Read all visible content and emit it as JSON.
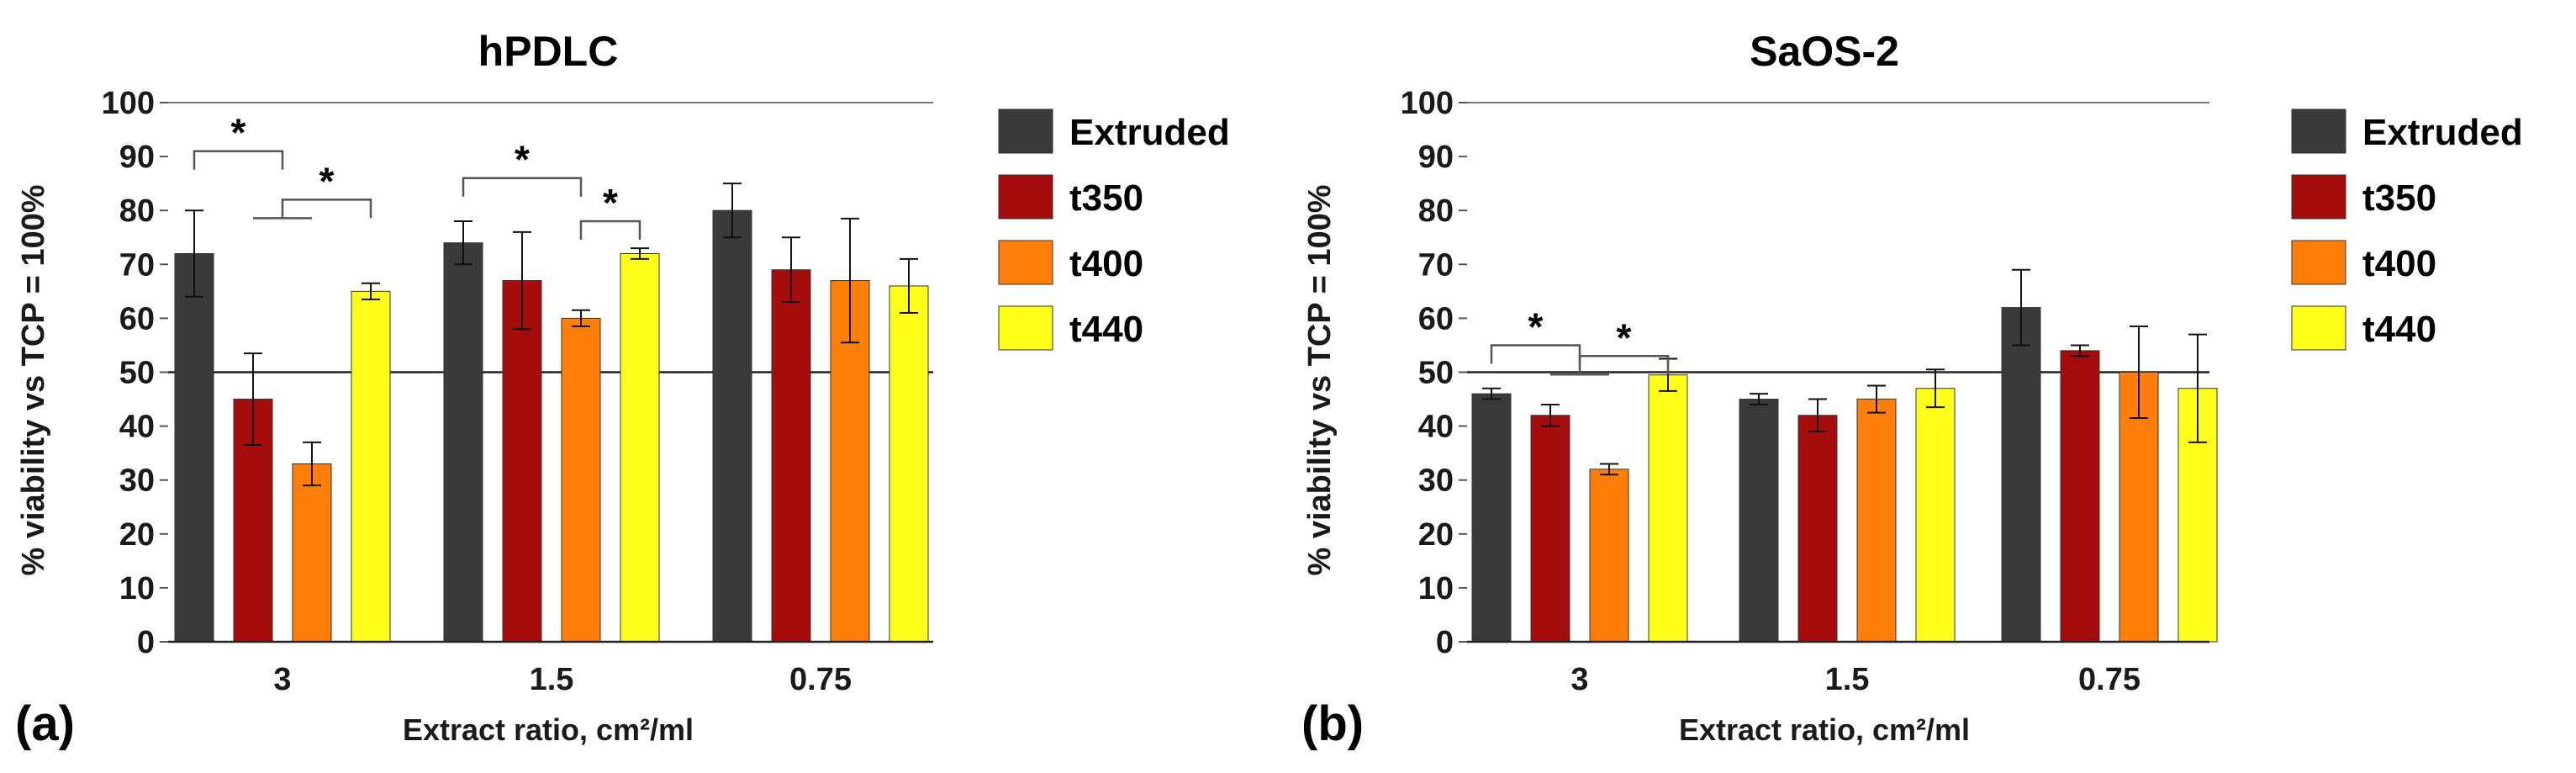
{
  "colors": {
    "Extruded": "#3a3a3a",
    "t350": "#a50d0d",
    "t400": "#ff7f0a",
    "t440": "#ffff1a"
  },
  "chart_data": [
    {
      "type": "bar",
      "panel_label": "(a)",
      "title": "hPDLC",
      "xlabel": "Extract ratio, cm²/ml",
      "ylabel": "% viability vs TCP = 100%",
      "ylim": [
        0,
        100
      ],
      "yticks": [
        "0",
        "10",
        "20",
        "30",
        "40",
        "50",
        "60",
        "70",
        "80",
        "90",
        "100"
      ],
      "reference_line": 50,
      "categories": [
        "3",
        "1.5",
        "0.75"
      ],
      "legend_position": "right",
      "series": [
        {
          "name": "Extruded",
          "values": [
            72,
            74,
            80
          ],
          "errors": [
            8,
            4,
            5
          ]
        },
        {
          "name": "t350",
          "values": [
            45,
            67,
            69
          ],
          "errors": [
            8.5,
            9,
            6
          ]
        },
        {
          "name": "t400",
          "values": [
            33,
            60,
            67
          ],
          "errors": [
            4,
            1.5,
            11.5
          ]
        },
        {
          "name": "t440",
          "values": [
            65,
            72,
            66
          ],
          "errors": [
            1.5,
            1,
            5
          ]
        }
      ],
      "annotations": [
        {
          "text": "*",
          "from": [
            0,
            "Extruded"
          ],
          "to": [
            0,
            "t350 / t400"
          ],
          "bracket_y": 91
        },
        {
          "text": "*",
          "from": [
            0,
            "t350 / t400"
          ],
          "to": [
            0,
            "t440"
          ],
          "bracket_y": 82
        },
        {
          "text": "*",
          "from": [
            1,
            "Extruded"
          ],
          "to": [
            1,
            "t400"
          ],
          "bracket_y": 86
        },
        {
          "text": "*",
          "from": [
            1,
            "t400"
          ],
          "to": [
            1,
            "t440"
          ],
          "bracket_y": 78
        }
      ]
    },
    {
      "type": "bar",
      "panel_label": "(b)",
      "title": "SaOS-2",
      "xlabel": "Extract ratio, cm²/ml",
      "ylabel": "% viability vs TCP = 100%",
      "ylim": [
        0,
        100
      ],
      "yticks": [
        "0",
        "10",
        "20",
        "30",
        "40",
        "50",
        "60",
        "70",
        "80",
        "90",
        "100"
      ],
      "reference_line": 50,
      "categories": [
        "3",
        "1.5",
        "0.75"
      ],
      "legend_position": "right",
      "series": [
        {
          "name": "Extruded",
          "values": [
            46,
            45,
            62
          ],
          "errors": [
            1,
            1,
            7
          ]
        },
        {
          "name": "t350",
          "values": [
            42,
            42,
            54
          ],
          "errors": [
            2,
            3,
            1
          ]
        },
        {
          "name": "t400",
          "values": [
            32,
            45,
            50
          ],
          "errors": [
            1,
            2.5,
            8.5
          ]
        },
        {
          "name": "t440",
          "values": [
            49.5,
            47,
            47
          ],
          "errors": [
            3,
            3.5,
            10
          ]
        }
      ],
      "annotations": [
        {
          "text": "*",
          "from": [
            0,
            "Extruded"
          ],
          "to": [
            0,
            "t350 / t400"
          ],
          "bracket_y": 55
        },
        {
          "text": "*",
          "from": [
            0,
            "t350 / t400"
          ],
          "to": [
            0,
            "t440"
          ],
          "bracket_y": 53
        }
      ]
    }
  ]
}
